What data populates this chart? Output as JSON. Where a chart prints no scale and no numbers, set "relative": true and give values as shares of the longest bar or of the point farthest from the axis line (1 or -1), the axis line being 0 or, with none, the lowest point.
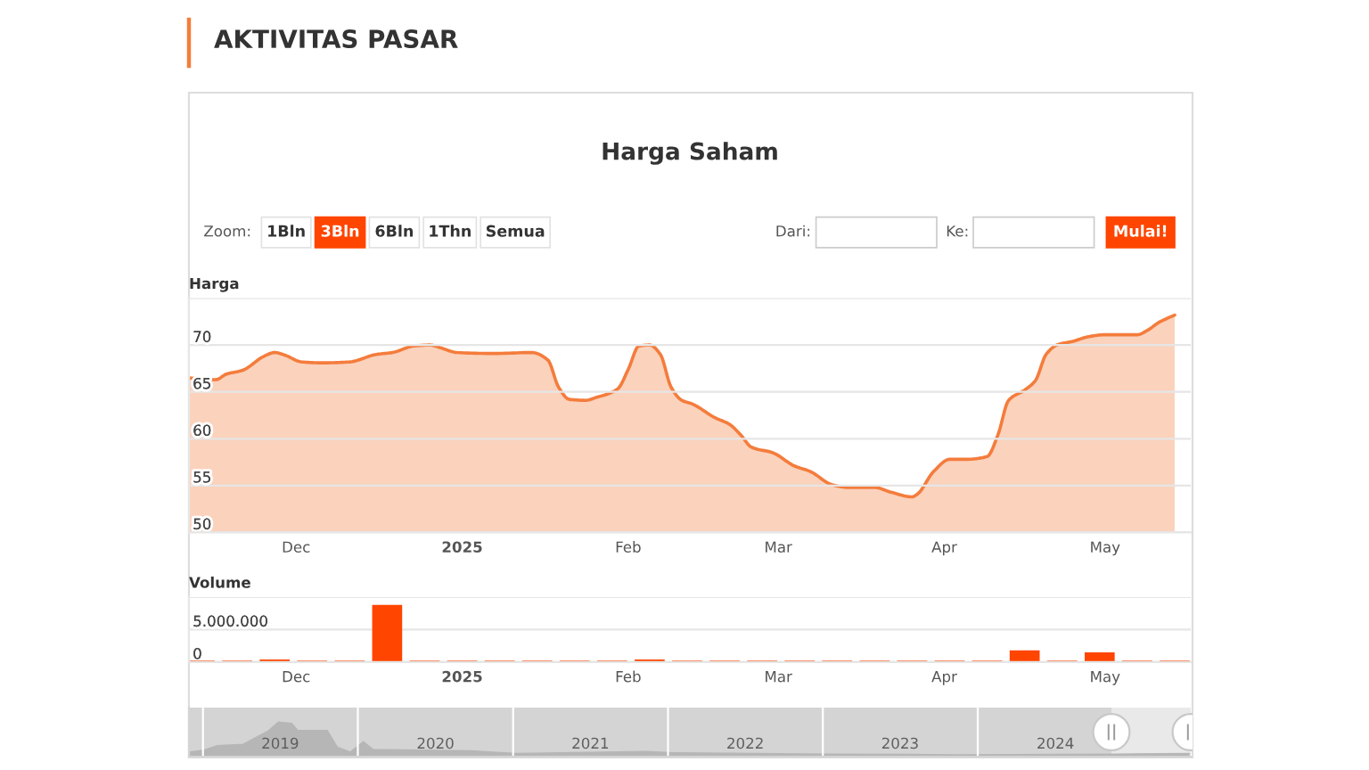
{
  "chart_data": [
    {
      "type": "area",
      "title": "Harga Saham",
      "ylabel": "Harga",
      "x": [
        "2024-11-11",
        "2024-11-16",
        "2024-11-18",
        "2024-11-21",
        "2024-11-25",
        "2024-11-27",
        "2024-11-29",
        "2024-12-02",
        "2024-12-06",
        "2024-12-11",
        "2024-12-16",
        "2024-12-19",
        "2024-12-23",
        "2024-12-26",
        "2024-12-28",
        "2024-12-31",
        "2025-01-07",
        "2025-01-14",
        "2025-01-17",
        "2025-01-19",
        "2025-01-21",
        "2025-01-24",
        "2025-01-26",
        "2025-01-30",
        "2025-02-01",
        "2025-02-03",
        "2025-02-05",
        "2025-02-07",
        "2025-02-09",
        "2025-02-11",
        "2025-02-13",
        "2025-02-17",
        "2025-02-20",
        "2025-02-22",
        "2025-02-24",
        "2025-02-28",
        "2025-03-04",
        "2025-03-07",
        "2025-03-11",
        "2025-03-14",
        "2025-03-19",
        "2025-03-22",
        "2025-03-26",
        "2025-03-27",
        "2025-03-30",
        "2025-04-02",
        "2025-04-05",
        "2025-04-09",
        "2025-04-11",
        "2025-04-13",
        "2025-04-16",
        "2025-04-18",
        "2025-04-20",
        "2025-04-22",
        "2025-04-25",
        "2025-04-28",
        "2025-05-01",
        "2025-05-07",
        "2025-05-09",
        "2025-05-11",
        "2025-05-14"
      ],
      "values": [
        66.5,
        66.3,
        66.9,
        67.3,
        68.8,
        69.2,
        68.9,
        68.2,
        68.1,
        68.2,
        69.0,
        69.2,
        69.9,
        70.0,
        69.7,
        69.2,
        69.1,
        69.2,
        68.4,
        65.5,
        64.2,
        64.1,
        64.4,
        65.3,
        67.4,
        69.9,
        70.0,
        69.0,
        65.5,
        64.1,
        63.7,
        62.3,
        61.5,
        60.4,
        59.1,
        58.5,
        57.1,
        56.5,
        55.1,
        54.8,
        54.8,
        54.3,
        53.8,
        54.1,
        56.5,
        57.8,
        57.8,
        58.1,
        60.4,
        64.1,
        65.2,
        66.2,
        69.0,
        70.0,
        70.4,
        70.9,
        71.1,
        71.1,
        71.6,
        72.4,
        73.2
      ],
      "color": "#f47c3c",
      "xlim": [
        "2024-11-11",
        "2025-05-17"
      ],
      "ylim": [
        50,
        75
      ],
      "xticks": [
        {
          "value": "2024-12-01",
          "label": "Dec"
        },
        {
          "value": "2025-01-01",
          "label": "2025"
        },
        {
          "value": "2025-02-01",
          "label": "Feb"
        },
        {
          "value": "2025-03-01",
          "label": "Mar"
        },
        {
          "value": "2025-04-01",
          "label": "Apr"
        },
        {
          "value": "2025-05-01",
          "label": "May"
        }
      ],
      "yticks": [
        50,
        55,
        60,
        65,
        70,
        {
          "value": 75,
          "label": null
        }
      ],
      "grid": "y",
      "annotations": [
        "AKTIVITAS PASAR",
        "Zoom:",
        "1Bln",
        "3Bln",
        "6Bln",
        "1Thn",
        "Semua",
        "Dari:",
        "Ke:",
        "Mulai!"
      ]
    },
    {
      "type": "bar",
      "ylabel": "Volume",
      "x": [
        "2024-11-13",
        "2024-11-20",
        "2024-11-27",
        "2024-12-04",
        "2024-12-11",
        "2024-12-18",
        "2024-12-25",
        "2025-01-01",
        "2025-01-08",
        "2025-01-15",
        "2025-01-22",
        "2025-01-29",
        "2025-02-05",
        "2025-02-12",
        "2025-02-19",
        "2025-02-26",
        "2025-03-05",
        "2025-03-12",
        "2025-03-19",
        "2025-03-26",
        "2025-04-02",
        "2025-04-09",
        "2025-04-16",
        "2025-04-23",
        "2025-04-30",
        "2025-05-07",
        "2025-05-14"
      ],
      "values": [
        200000,
        200000,
        400000,
        200000,
        200000,
        8800000,
        200000,
        200000,
        200000,
        200000,
        200000,
        200000,
        400000,
        200000,
        200000,
        200000,
        200000,
        200000,
        200000,
        200000,
        200000,
        200000,
        1800000,
        200000,
        1500000,
        200000,
        200000
      ],
      "color": "#ff4500",
      "xlim": [
        "2024-11-11",
        "2025-05-17"
      ],
      "ylim": [
        0,
        10000000
      ],
      "xticks": [
        {
          "value": "2024-12-01",
          "label": "Dec"
        },
        {
          "value": "2025-01-01",
          "label": "2025"
        },
        {
          "value": "2025-02-01",
          "label": "Feb"
        },
        {
          "value": "2025-03-01",
          "label": "Mar"
        },
        {
          "value": "2025-04-01",
          "label": "Apr"
        },
        {
          "value": "2025-05-01",
          "label": "May"
        }
      ],
      "yticks": [
        0,
        {
          "value": 5000000,
          "label": "5.000.000"
        },
        {
          "value": 10000000,
          "label": null
        }
      ],
      "grid": "y"
    },
    {
      "type": "area",
      "relative": true,
      "x": [
        "2018-11-29",
        "2019-01-03",
        "2019-02-04",
        "2019-04-06",
        "2019-06-05",
        "2019-06-28",
        "2019-07-29",
        "2019-08-13",
        "2019-10-21",
        "2019-11-13",
        "2019-12-14",
        "2020-01-14",
        "2020-02-06",
        "2020-09-23",
        "2021-01-08",
        "2021-11-10",
        "2022-01-12",
        "2023-01-13",
        "2023-11-15",
        "2024-11-17",
        "2025-05-14"
      ],
      "values": [
        0.08,
        0.14,
        0.28,
        0.32,
        0.74,
        1,
        0.96,
        0.74,
        0.74,
        0.24,
        0.08,
        0.4,
        0.16,
        0.12,
        0.04,
        0.1,
        0.06,
        0.02,
        0,
        0.02,
        0.04
      ],
      "color": "#b6b6b6",
      "xlim": [
        "2018-11-29",
        "2025-05-17"
      ],
      "xticks": [
        {
          "value": "2019-01-01",
          "label": null
        },
        {
          "value": "2020-01-01",
          "label": null
        },
        {
          "value": "2021-01-01",
          "label": null
        },
        {
          "value": "2022-01-01",
          "label": null
        },
        {
          "value": "2023-01-01",
          "label": null
        },
        {
          "value": "2024-01-01",
          "label": null
        },
        {
          "value": "2019-07-02",
          "label": "2019"
        },
        {
          "value": "2020-07-02",
          "label": "2020"
        },
        {
          "value": "2021-07-02",
          "label": "2021"
        },
        {
          "value": "2022-07-02",
          "label": "2022"
        },
        {
          "value": "2023-07-02",
          "label": "2023"
        },
        {
          "value": "2024-07-02",
          "label": "2024"
        }
      ],
      "bands": [
        {
          "axis": "x",
          "from": "2024-11-11",
          "to": "2025-05-17",
          "color": "#e9e9e9"
        }
      ],
      "grid": "x",
      "tick_labels": "x"
    }
  ]
}
